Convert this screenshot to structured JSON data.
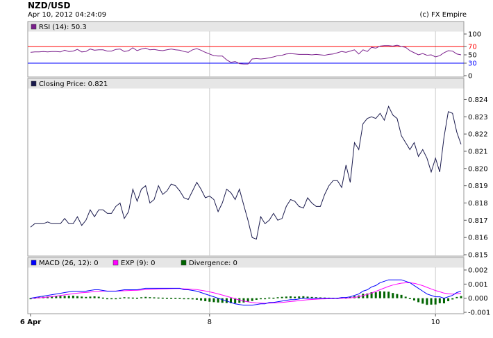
{
  "header": {
    "title": "NZD/USD",
    "timestamp": "Apr 10, 2012 04:24:09",
    "copyright": "(c) FX Empire"
  },
  "colors": {
    "rsi": "#7a1f8c",
    "price": "#1a1a4d",
    "macd": "#0000ff",
    "exp": "#ff00ff",
    "divergence": "#006400",
    "overbought": "#ff0000",
    "oversold": "#0000ff",
    "panel_header": "#e6e6e6",
    "grid": "#cccccc"
  },
  "x_axis": {
    "ticks": [
      {
        "label": "6 Apr",
        "i": 0,
        "bold": true
      },
      {
        "label": "8",
        "i": 42,
        "bold": false
      },
      {
        "label": "10",
        "i": 95,
        "bold": false
      }
    ]
  },
  "chart_data": [
    {
      "type": "line",
      "legend": "RSI (14): 50.3",
      "ylim": [
        0,
        100
      ],
      "y_ticks": [
        "100",
        "70",
        "50",
        "30",
        "0"
      ],
      "y_tick_values": [
        100,
        70,
        50,
        30,
        0
      ],
      "levels": [
        70,
        30
      ],
      "values": [
        56,
        57,
        57,
        58,
        57,
        58,
        58,
        57,
        61,
        58,
        59,
        63,
        57,
        58,
        64,
        61,
        62,
        62,
        59,
        59,
        63,
        64,
        58,
        60,
        67,
        60,
        64,
        66,
        62,
        63,
        61,
        60,
        62,
        64,
        62,
        61,
        58,
        56,
        62,
        65,
        61,
        56,
        52,
        48,
        47,
        47,
        38,
        32,
        34,
        29,
        28,
        28,
        40,
        41,
        40,
        41,
        43,
        45,
        48,
        49,
        52,
        53,
        52,
        51,
        51,
        51,
        50,
        51,
        50,
        49,
        51,
        52,
        55,
        58,
        56,
        59,
        62,
        52,
        62,
        58,
        68,
        66,
        71,
        72,
        72,
        71,
        73,
        70,
        68,
        60,
        55,
        50,
        53,
        49,
        50,
        45,
        48,
        55,
        60,
        59,
        52,
        50
      ]
    },
    {
      "type": "line",
      "legend": "Closing Price: 0.821",
      "ylim": [
        0.815,
        0.8245
      ],
      "y_ticks": [
        "0.824",
        "0.823",
        "0.822",
        "0.821",
        "0.820",
        "0.819",
        "0.818",
        "0.817",
        "0.816",
        "0.815"
      ],
      "y_tick_values": [
        0.824,
        0.823,
        0.822,
        0.821,
        0.82,
        0.819,
        0.818,
        0.817,
        0.816,
        0.815
      ],
      "values": [
        0.8166,
        0.8168,
        0.8168,
        0.8168,
        0.8169,
        0.8168,
        0.8168,
        0.8168,
        0.8171,
        0.8168,
        0.8168,
        0.8172,
        0.8167,
        0.817,
        0.8176,
        0.8172,
        0.8176,
        0.8176,
        0.8174,
        0.8174,
        0.8178,
        0.818,
        0.8171,
        0.8175,
        0.8188,
        0.8181,
        0.8188,
        0.819,
        0.818,
        0.8182,
        0.819,
        0.8185,
        0.8187,
        0.8191,
        0.819,
        0.8187,
        0.8183,
        0.8182,
        0.8187,
        0.8192,
        0.8188,
        0.8183,
        0.8184,
        0.8182,
        0.8175,
        0.818,
        0.8188,
        0.8186,
        0.8182,
        0.8188,
        0.8179,
        0.817,
        0.816,
        0.8159,
        0.8172,
        0.8168,
        0.817,
        0.8174,
        0.817,
        0.8171,
        0.8178,
        0.8182,
        0.8181,
        0.8178,
        0.8177,
        0.8183,
        0.818,
        0.8178,
        0.8178,
        0.8185,
        0.819,
        0.8193,
        0.8193,
        0.8189,
        0.8202,
        0.8192,
        0.8215,
        0.8211,
        0.8226,
        0.8229,
        0.823,
        0.8229,
        0.8232,
        0.8228,
        0.8236,
        0.8231,
        0.8229,
        0.8219,
        0.8215,
        0.8211,
        0.8215,
        0.8207,
        0.8211,
        0.8206,
        0.8198,
        0.8206,
        0.8198,
        0.8218,
        0.8233,
        0.8232,
        0.8221,
        0.8214
      ]
    },
    {
      "type": "line",
      "legend_items": [
        {
          "label": "MACD (26, 12): 0",
          "color": "#0000ff"
        },
        {
          "label": "EXP (9): 0",
          "color": "#ff00ff"
        },
        {
          "label": "Divergence: 0",
          "color": "#006400"
        }
      ],
      "ylim": [
        -0.001,
        0.002
      ],
      "y_ticks": [
        "0.002",
        "0.001",
        "0.000",
        "-0.001"
      ],
      "y_tick_values": [
        0.002,
        0.001,
        0.0,
        -0.001
      ],
      "macd": [
        0.0,
        5e-05,
        0.0001,
        0.00015,
        0.0002,
        0.00025,
        0.0003,
        0.00035,
        0.0004,
        0.00045,
        0.0005,
        0.0005,
        0.0005,
        0.0005,
        0.00055,
        0.0006,
        0.0006,
        0.00055,
        0.0005,
        0.0005,
        0.0005,
        0.00055,
        0.0006,
        0.0006,
        0.0006,
        0.0006,
        0.00065,
        0.0007,
        0.0007,
        0.0007,
        0.0007,
        0.0007,
        0.0007,
        0.0007,
        0.0007,
        0.0007,
        0.0006,
        0.0006,
        0.00055,
        0.0005,
        0.0004,
        0.0003,
        0.0002,
        0.0001,
        0.0,
        -0.0001,
        -0.0002,
        -0.0003,
        -0.0004,
        -0.00045,
        -0.0005,
        -0.0005,
        -0.0005,
        -0.00045,
        -0.0004,
        -0.0004,
        -0.0003,
        -0.0003,
        -0.00025,
        -0.0002,
        -0.00015,
        -0.0001,
        -0.0001,
        -5e-05,
        0.0,
        0.0,
        0.0,
        0.0,
        0.0,
        0.0,
        0.0,
        0.0,
        0.0,
        5e-05,
        5e-05,
        0.0001,
        0.0002,
        0.0003,
        0.0005,
        0.0006,
        0.0008,
        0.0009,
        0.0011,
        0.0012,
        0.0013,
        0.0013,
        0.0013,
        0.0013,
        0.0012,
        0.0011,
        0.0009,
        0.0007,
        0.0005,
        0.0003,
        0.0002,
        0.0001,
        0.0001,
        0.0,
        0.0001,
        0.0002,
        0.0004,
        0.0005
      ]
    }
  ]
}
